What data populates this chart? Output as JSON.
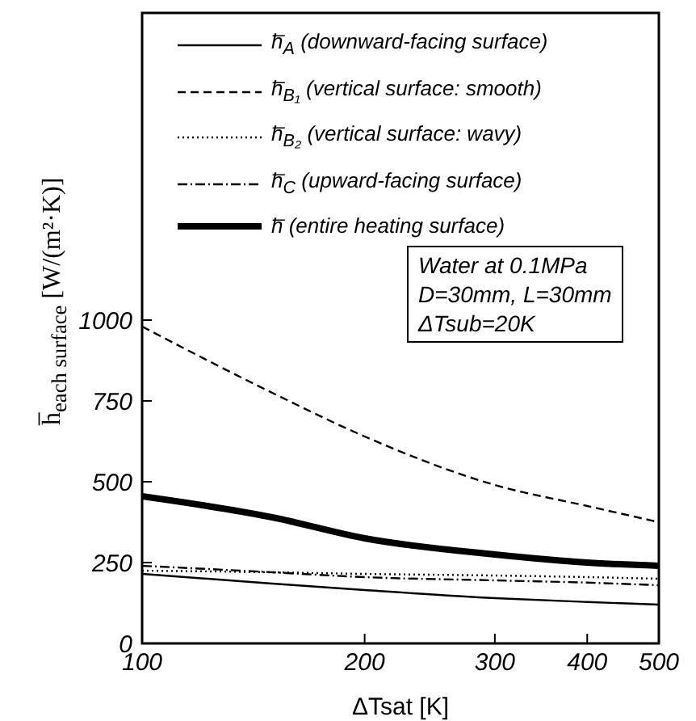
{
  "chart_data": {
    "type": "line",
    "xlabel": "ΔTsat [K]",
    "ylabel": "h̅$_{each surface}$ [W/(m²·K)]",
    "log": "x",
    "xlim": [
      100,
      500
    ],
    "xticks": [
      100,
      200,
      300,
      400,
      500
    ],
    "ylim": [
      0,
      1950
    ],
    "yticks": [
      0,
      250,
      500,
      750,
      1000
    ],
    "legend": "top",
    "x": [
      100,
      150,
      200,
      300,
      400,
      500
    ],
    "series": [
      {
        "name": "h̅$_{A}$ (downward-facing surface)",
        "color": "#000000",
        "line_style": "solid",
        "values": [
          215,
          185,
          165,
          140,
          128,
          120
        ]
      },
      {
        "name": "h̅$_{B₁}$ (vertical surface: smooth)",
        "color": "#000000",
        "line_style": "dashed",
        "values": [
          980,
          775,
          640,
          490,
          425,
          375
        ]
      },
      {
        "name": "h̅$_{B₂}$ (vertical surface: wavy)",
        "color": "#000000",
        "line_style": "dotted",
        "values": [
          225,
          220,
          215,
          210,
          205,
          200
        ]
      },
      {
        "name": "h̅$_{C}$ (upward-facing surface)",
        "color": "#000000",
        "line_style": "dashdot",
        "values": [
          240,
          220,
          205,
          195,
          188,
          180
        ]
      },
      {
        "name": "h̅ (entire heating surface)",
        "color": "#000000",
        "line_style": "solid",
        "values": [
          455,
          390,
          325,
          275,
          250,
          240
        ]
      }
    ],
    "annotations": [
      "Water at 0.1MPa",
      "D=30mm, L=30mm",
      "ΔTsub=20K"
    ]
  }
}
